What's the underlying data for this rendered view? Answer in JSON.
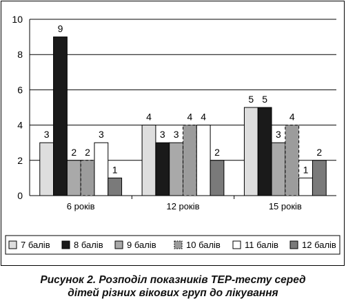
{
  "chart_data": {
    "type": "bar",
    "categories": [
      "6 років",
      "12 років",
      "15 років"
    ],
    "series": [
      {
        "name": "7 балів",
        "values": [
          3,
          4,
          5
        ],
        "fill": "#dedede",
        "stroke": "#000000",
        "dashed": false
      },
      {
        "name": "8 балів",
        "values": [
          9,
          3,
          5
        ],
        "fill": "#1a1a1a",
        "stroke": "#000000",
        "dashed": false
      },
      {
        "name": "9 балів",
        "values": [
          2,
          3,
          3
        ],
        "fill": "#a9a9a9",
        "stroke": "#000000",
        "dashed": false
      },
      {
        "name": "10 балів",
        "values": [
          2,
          4,
          4
        ],
        "fill": "#9c9c9c",
        "stroke": "#000000",
        "dashed": true
      },
      {
        "name": "11 балів",
        "values": [
          3,
          4,
          1
        ],
        "fill": "#ffffff",
        "stroke": "#000000",
        "dashed": false
      },
      {
        "name": "12 балів",
        "values": [
          1,
          2,
          2
        ],
        "fill": "#7a7a7a",
        "stroke": "#000000",
        "dashed": false
      }
    ],
    "ylim": [
      0,
      10
    ],
    "yticks": [
      0,
      2,
      4,
      6,
      8,
      10
    ],
    "grid": true,
    "legend_position": "bottom",
    "data_labels": true
  },
  "caption": {
    "line1": "Рисунок 2. Розподіл показників ТЕР-тесту серед",
    "line2": "дітей різних вікових груп до лікування"
  }
}
